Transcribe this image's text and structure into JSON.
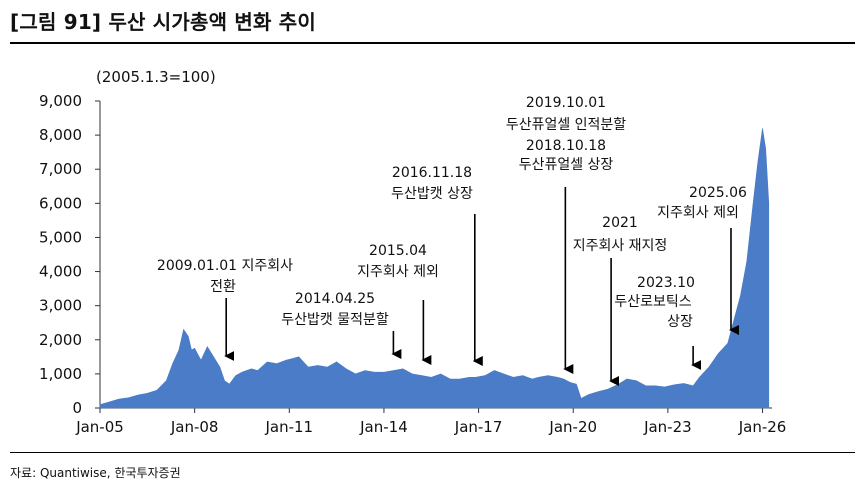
{
  "title": "[그림 91] 두산 시가총액 변화 추이",
  "source": "자료: Quantiwise, 한국투자증권",
  "chart_data": {
    "type": "area",
    "title": "[그림 91] 두산 시가총액 변화 추이",
    "unit_note": "(2005.1.3=100)",
    "xlabel": "",
    "ylabel": "",
    "ylim": [
      0,
      9000
    ],
    "yticks": [
      0,
      1000,
      2000,
      3000,
      4000,
      5000,
      6000,
      7000,
      8000,
      9000
    ],
    "ytick_labels": [
      "0",
      "1,000",
      "2,000",
      "3,000",
      "4,000",
      "5,000",
      "6,000",
      "7,000",
      "8,000",
      "9,000"
    ],
    "xlim": [
      2005.0,
      2026.3
    ],
    "xticks": [
      2005,
      2008,
      2011,
      2014,
      2017,
      2020,
      2023,
      2026
    ],
    "xtick_labels": [
      "Jan-05",
      "Jan-08",
      "Jan-11",
      "Jan-14",
      "Jan-17",
      "Jan-20",
      "Jan-23",
      "Jan-26"
    ],
    "grid": false,
    "legend": "none",
    "fill_color": "#4a7cc7",
    "series": [
      {
        "x": [
          2005.0,
          2005.3,
          2005.6,
          2005.9,
          2006.2,
          2006.5,
          2006.8,
          2007.1,
          2007.3,
          2007.5,
          2007.65,
          2007.8,
          2007.9,
          2008.0,
          2008.2,
          2008.4,
          2008.6,
          2008.8,
          2008.95,
          2009.1,
          2009.3,
          2009.5,
          2009.8,
          2010.0,
          2010.3,
          2010.6,
          2010.9,
          2011.1,
          2011.3,
          2011.6,
          2011.9,
          2012.2,
          2012.5,
          2012.8,
          2013.1,
          2013.4,
          2013.7,
          2014.0,
          2014.3,
          2014.6,
          2014.9,
          2015.2,
          2015.5,
          2015.8,
          2016.1,
          2016.4,
          2016.7,
          2016.9,
          2017.2,
          2017.5,
          2017.8,
          2018.1,
          2018.4,
          2018.7,
          2018.9,
          2019.2,
          2019.5,
          2019.7,
          2019.9,
          2020.1,
          2020.25,
          2020.5,
          2020.8,
          2021.1,
          2021.4,
          2021.7,
          2022.0,
          2022.3,
          2022.6,
          2022.9,
          2023.2,
          2023.5,
          2023.8,
          2024.0,
          2024.3,
          2024.6,
          2024.9,
          2025.1,
          2025.3,
          2025.5,
          2025.7,
          2025.85,
          2026.0,
          2026.1,
          2026.2
        ],
        "y": [
          100,
          180,
          260,
          300,
          380,
          430,
          520,
          800,
          1300,
          1700,
          2300,
          2100,
          1700,
          1750,
          1400,
          1800,
          1500,
          1200,
          800,
          700,
          950,
          1050,
          1150,
          1100,
          1350,
          1300,
          1400,
          1450,
          1500,
          1200,
          1250,
          1200,
          1350,
          1150,
          1000,
          1100,
          1050,
          1050,
          1100,
          1150,
          1000,
          950,
          900,
          1000,
          850,
          850,
          900,
          900,
          950,
          1100,
          1000,
          900,
          950,
          850,
          900,
          950,
          900,
          850,
          750,
          700,
          280,
          400,
          480,
          550,
          680,
          850,
          800,
          650,
          650,
          620,
          680,
          720,
          650,
          900,
          1200,
          1600,
          1900,
          2600,
          3300,
          4300,
          6000,
          7200,
          8200,
          7600,
          6000
        ]
      }
    ],
    "annotations": [
      {
        "lines": [
          "2009.01.01  지주회사",
          "전환"
        ],
        "x": 2009.0
      },
      {
        "lines": [
          "2014.04.25",
          "두산밥캣 물적분할"
        ],
        "x": 2014.3
      },
      {
        "lines": [
          "2015.04",
          "지주회사 제외"
        ],
        "x": 2015.25
      },
      {
        "lines": [
          "2016.11.18",
          "두산밥캣 상장"
        ],
        "x": 2016.88
      },
      {
        "lines": [
          "2019.10.01",
          "두산퓨얼셀 인적분할",
          "2018.10.18",
          "두산퓨얼셀 상장"
        ],
        "x": 2019.75
      },
      {
        "lines": [
          "2021",
          "지주회사 재지정"
        ],
        "x": 2021.2
      },
      {
        "lines": [
          "2023.10",
          "두산로보틱스",
          "상장"
        ],
        "x": 2023.8
      },
      {
        "lines": [
          "2025.06",
          "지주회사 제외"
        ],
        "x": 2025.0
      }
    ]
  }
}
